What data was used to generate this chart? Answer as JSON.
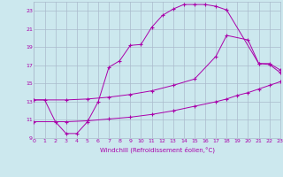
{
  "xlabel": "Windchill (Refroidissement éolien,°C)",
  "bg_color": "#cce8ee",
  "grid_color": "#aabbcc",
  "line_color": "#aa00aa",
  "xmin": 0,
  "xmax": 23,
  "ymin": 9,
  "ymax": 24,
  "yticks": [
    9,
    11,
    13,
    15,
    17,
    19,
    21,
    23
  ],
  "xticks": [
    0,
    1,
    2,
    3,
    4,
    5,
    6,
    7,
    8,
    9,
    10,
    11,
    12,
    13,
    14,
    15,
    16,
    17,
    18,
    19,
    20,
    21,
    22,
    23
  ],
  "line1_x": [
    0,
    1,
    2,
    3,
    4,
    5,
    6,
    7,
    8,
    9,
    10,
    11,
    12,
    13,
    14,
    15,
    16,
    17,
    18,
    21,
    22,
    23
  ],
  "line1_y": [
    13.2,
    13.2,
    10.8,
    9.5,
    9.5,
    10.8,
    13.0,
    16.8,
    17.5,
    19.2,
    19.3,
    21.2,
    22.5,
    23.2,
    23.7,
    23.7,
    23.7,
    23.5,
    23.1,
    17.2,
    17.1,
    16.2
  ],
  "line2_x": [
    0,
    3,
    5,
    7,
    9,
    11,
    13,
    15,
    17,
    18,
    20,
    21,
    22,
    23
  ],
  "line2_y": [
    13.2,
    13.2,
    13.3,
    13.5,
    13.8,
    14.2,
    14.8,
    15.5,
    18.0,
    20.3,
    19.8,
    17.2,
    17.2,
    16.5
  ],
  "line3_x": [
    0,
    3,
    5,
    7,
    9,
    11,
    13,
    15,
    17,
    18,
    19,
    20,
    21,
    22,
    23
  ],
  "line3_y": [
    10.8,
    10.8,
    10.9,
    11.1,
    11.3,
    11.6,
    12.0,
    12.5,
    13.0,
    13.3,
    13.7,
    14.0,
    14.4,
    14.8,
    15.2
  ]
}
